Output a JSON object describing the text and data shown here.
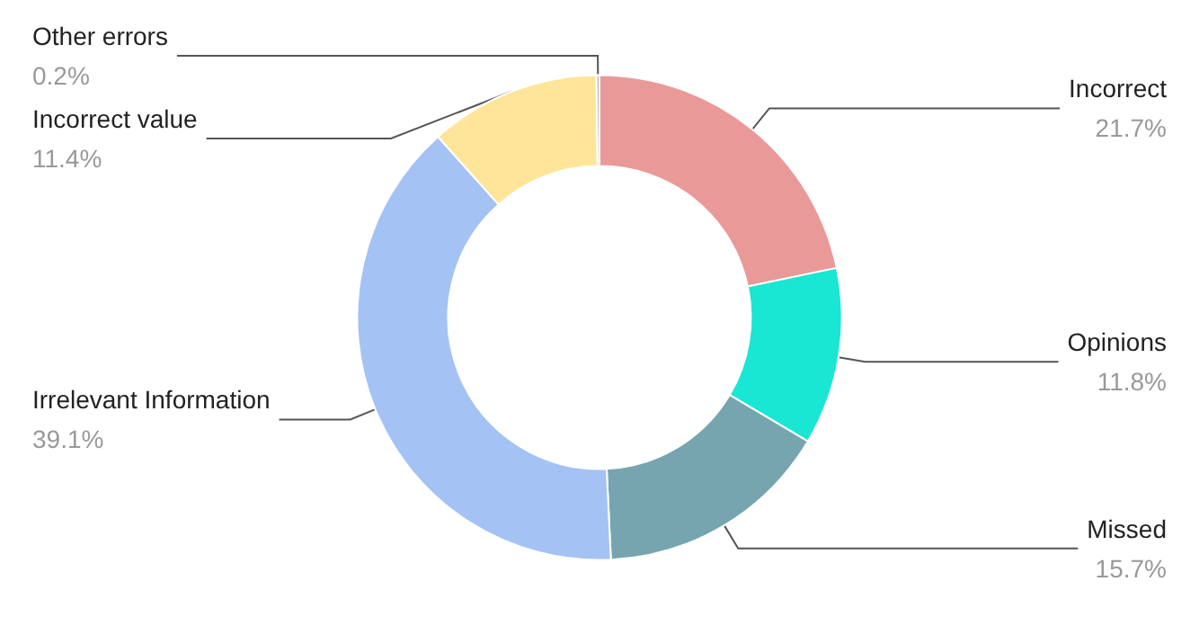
{
  "chart_data": {
    "type": "donut",
    "categories": [
      "Incorrect",
      "Opinions",
      "Missed",
      "Irrelevant Information",
      "Incorrect value",
      "Other errors"
    ],
    "values": [
      21.7,
      11.8,
      15.7,
      39.1,
      11.4,
      0.2
    ],
    "value_labels": [
      "21.7%",
      "11.8%",
      "15.7%",
      "39.1%",
      "11.4%",
      "0.2%"
    ],
    "colors": [
      "#ea9999",
      "#19e6d3",
      "#76a5af",
      "#a4c2f4",
      "#ffe599",
      "#b7b7b7"
    ],
    "legend": false
  }
}
